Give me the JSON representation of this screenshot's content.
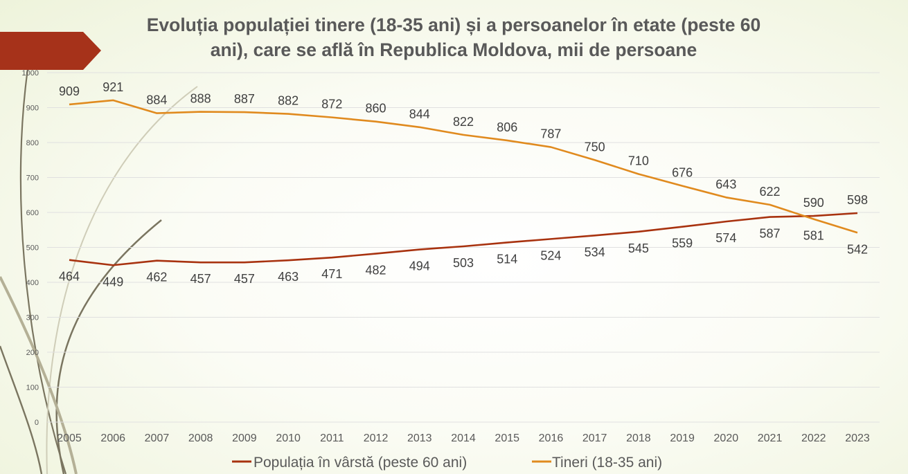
{
  "slide": {
    "title_line1": "Evoluția populației tinere (18-35 ani) și a persoanelor în etate (peste 60",
    "title_line2": "ani), care se află în  Republica Moldova, mii de persoane"
  },
  "colors": {
    "accent_banner": "#a6321a",
    "series_elderly": "#a8320f",
    "series_youth": "#e08a1e",
    "gridline": "#e0e0e0",
    "text": "#595959"
  },
  "chart_data": {
    "type": "line",
    "title": "Evoluția populației tinere (18-35 ani) și a persoanelor în etate (peste 60 ani), care se află în  Republica Moldova, mii de persoane",
    "xlabel": "",
    "ylabel": "",
    "ylim": [
      0,
      1000
    ],
    "yticks": [
      0,
      100,
      200,
      300,
      400,
      500,
      600,
      700,
      800,
      900,
      1000
    ],
    "grid": true,
    "legend_position": "bottom",
    "categories": [
      "2005",
      "2006",
      "2007",
      "2008",
      "2009",
      "2010",
      "2011",
      "2012",
      "2013",
      "2014",
      "2015",
      "2016",
      "2017",
      "2018",
      "2019",
      "2020",
      "2021",
      "2022",
      "2023"
    ],
    "series": [
      {
        "name": "Populația în vârstă (peste 60 ani)",
        "color": "#a8320f",
        "values": [
          464,
          449,
          462,
          457,
          457,
          463,
          471,
          482,
          494,
          503,
          514,
          524,
          534,
          545,
          559,
          574,
          587,
          590,
          598
        ]
      },
      {
        "name": "Tineri (18-35 ani)",
        "color": "#e08a1e",
        "values": [
          909,
          921,
          884,
          888,
          887,
          882,
          872,
          860,
          844,
          822,
          806,
          787,
          750,
          710,
          676,
          643,
          622,
          581,
          542
        ]
      }
    ]
  }
}
